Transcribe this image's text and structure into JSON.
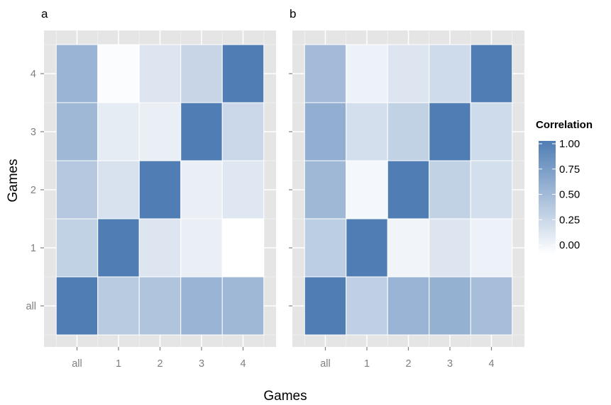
{
  "chart_data": {
    "type": "heatmap",
    "panels": [
      {
        "label": "a",
        "x_categories": [
          "all",
          "1",
          "2",
          "3",
          "4"
        ],
        "y_categories": [
          "all",
          "1",
          "2",
          "3",
          "4"
        ],
        "values": [
          [
            1.0,
            0.4,
            0.45,
            0.58,
            0.55
          ],
          [
            0.35,
            1.0,
            0.2,
            0.12,
            0.0
          ],
          [
            0.42,
            0.22,
            1.0,
            0.12,
            0.18
          ],
          [
            0.55,
            0.15,
            0.12,
            1.0,
            0.3
          ],
          [
            0.58,
            0.02,
            0.2,
            0.32,
            1.0
          ]
        ]
      },
      {
        "label": "b",
        "x_categories": [
          "all",
          "1",
          "2",
          "3",
          "4"
        ],
        "y_categories": [
          "all",
          "1",
          "2",
          "3",
          "4"
        ],
        "values": [
          [
            1.0,
            0.36,
            0.58,
            0.6,
            0.5
          ],
          [
            0.38,
            1.0,
            0.08,
            0.2,
            0.1
          ],
          [
            0.55,
            0.06,
            1.0,
            0.35,
            0.25
          ],
          [
            0.62,
            0.25,
            0.35,
            1.0,
            0.28
          ],
          [
            0.52,
            0.1,
            0.2,
            0.28,
            1.0
          ]
        ]
      }
    ],
    "xlabel": "Games",
    "ylabel": "Games",
    "legend": {
      "title": "Correlation",
      "ticks": [
        1.0,
        0.75,
        0.5,
        0.25,
        0.0
      ],
      "tick_labels": [
        "1.00",
        "0.75",
        "0.50",
        "0.25",
        "0.00"
      ],
      "placement": "right"
    },
    "color_scale": {
      "low": "#ffffff",
      "high": "#4f7db4",
      "domain": [
        0,
        1
      ]
    },
    "panel_background": "#e5e5e5",
    "grid": true
  }
}
